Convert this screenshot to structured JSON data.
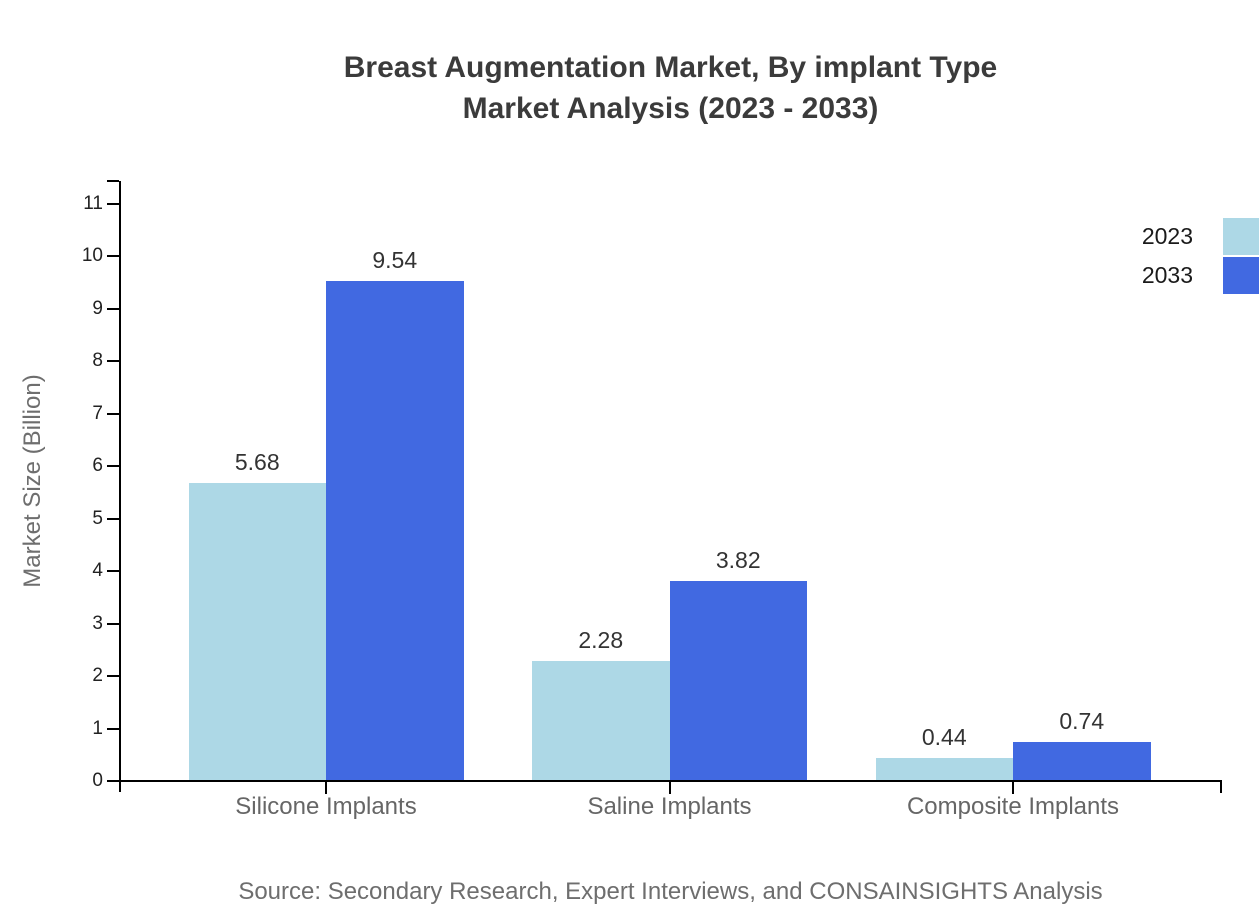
{
  "title": {
    "line1": "Breast Augmentation Market, By implant Type",
    "line2": "Market Analysis (2023 - 2033)"
  },
  "source": "Source: Secondary Research, Expert Interviews, and CONSAINSIGHTS Analysis",
  "chart_data": {
    "type": "bar",
    "title": "Breast Augmentation Market, By implant Type Market Analysis (2023 - 2033)",
    "categories": [
      "Silicone Implants",
      "Saline Implants",
      "Composite Implants"
    ],
    "series": [
      {
        "name": "2023",
        "color": "#ADD8E6",
        "values": [
          5.68,
          2.28,
          0.44
        ]
      },
      {
        "name": "2033",
        "color": "#4169E1",
        "values": [
          9.54,
          3.82,
          0.74
        ]
      }
    ],
    "xlabel": "",
    "ylabel": "Market Size (Billion)",
    "ylim": [
      0,
      11
    ],
    "yticks": [
      0,
      1,
      2,
      3,
      4,
      5,
      6,
      7,
      8,
      9,
      10,
      11
    ],
    "grid": false,
    "legend_position": "top-right",
    "value_labels": true,
    "value_label_decimals": 2,
    "axis_color": "#000000",
    "tick_label_color": "#222222",
    "title_color": "#3b3b3b",
    "muted_text_color": "#6e6e6e"
  }
}
